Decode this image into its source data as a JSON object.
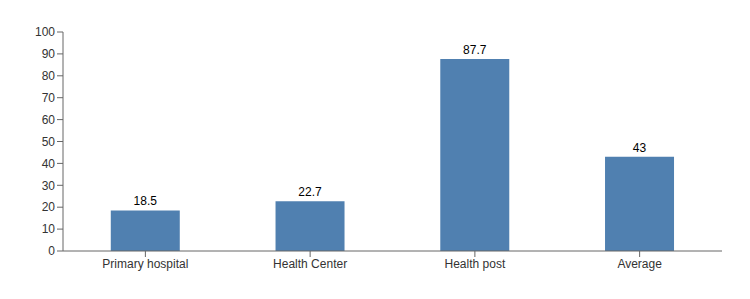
{
  "chart_data": {
    "type": "bar",
    "categories": [
      "Primary hospital",
      "Health Center",
      "Health post",
      "Average"
    ],
    "values": [
      18.5,
      22.7,
      87.7,
      43.0
    ],
    "color": "#5080B0",
    "ylim": [
      0,
      100
    ],
    "yticks": [
      0,
      10,
      20,
      30,
      40,
      50,
      60,
      70,
      80,
      90,
      100
    ],
    "grid": false,
    "data_labels": true
  }
}
